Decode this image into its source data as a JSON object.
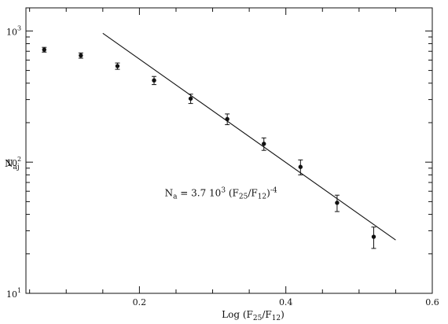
{
  "chart_data": {
    "type": "scatter",
    "title": "",
    "xlabel": {
      "main": "Log (F",
      "s1": "25",
      "mid": "/F",
      "s2": "12",
      "end": ")"
    },
    "ylabel": {
      "main": "N",
      "sub": "aj"
    },
    "xlim": [
      0.045,
      0.6
    ],
    "ylim": [
      10,
      1500
    ],
    "yscale": "log",
    "grid": false,
    "x_ticks": [
      {
        "value": 0.2,
        "label": "0.2"
      },
      {
        "value": 0.4,
        "label": "0.4"
      },
      {
        "value": 0.6,
        "label": "0.6"
      }
    ],
    "y_ticks": [
      {
        "value": 10,
        "base": "10",
        "exp": "1"
      },
      {
        "value": 100,
        "base": "10",
        "exp": "2"
      },
      {
        "value": 1000,
        "base": "10",
        "exp": "3"
      }
    ],
    "points": [
      {
        "x": 0.07,
        "y": 720,
        "err": 30
      },
      {
        "x": 0.12,
        "y": 650,
        "err": 30
      },
      {
        "x": 0.17,
        "y": 540,
        "err": 30
      },
      {
        "x": 0.22,
        "y": 420,
        "err": 30
      },
      {
        "x": 0.27,
        "y": 305,
        "err": 25
      },
      {
        "x": 0.32,
        "y": 213,
        "err": 20
      },
      {
        "x": 0.37,
        "y": 138,
        "err": 15
      },
      {
        "x": 0.42,
        "y": 92,
        "err": 12
      },
      {
        "x": 0.47,
        "y": 49,
        "err": 7
      },
      {
        "x": 0.52,
        "y": 27,
        "err": 5
      }
    ],
    "fit_line": {
      "x": [
        0.15,
        0.55
      ],
      "y": [
        960,
        25.5
      ]
    },
    "annotation": {
      "lhs_main": "N",
      "lhs_sub": "a",
      "text1": " = 3.7 10",
      "exp1": "3",
      "text2": " (F",
      "sub2": "25",
      "text3": "/F",
      "sub3": "12",
      "text4": ")",
      "exp4": "-4",
      "x": 0.46,
      "y": 58
    }
  }
}
